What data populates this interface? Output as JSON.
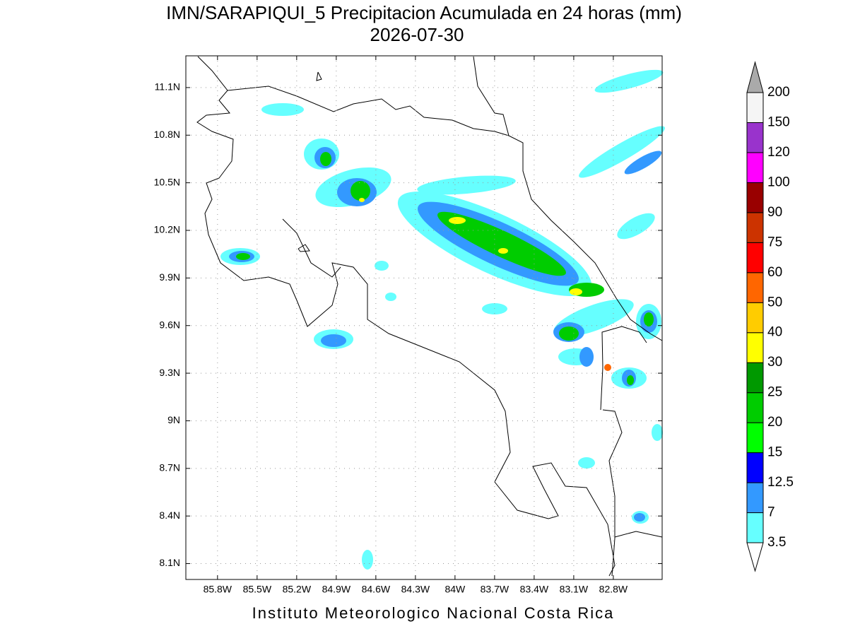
{
  "title": "IMN/SARAPIQUI_5 Precipitacion Acumulada en 24 horas (mm)",
  "date": "2026-07-30",
  "footer": "Instituto Meteorologico Nacional Costa Rica",
  "map": {
    "xlim": [
      -86.04,
      -82.43
    ],
    "ylim": [
      8.0,
      11.3
    ],
    "grid": true,
    "xticks": [
      {
        "value": -85.8,
        "label": "85.8W"
      },
      {
        "value": -85.5,
        "label": "85.5W"
      },
      {
        "value": -85.2,
        "label": "85.2W"
      },
      {
        "value": -84.9,
        "label": "84.9W"
      },
      {
        "value": -84.6,
        "label": "84.6W"
      },
      {
        "value": -84.3,
        "label": "84.3W"
      },
      {
        "value": -84.0,
        "label": "84W"
      },
      {
        "value": -83.7,
        "label": "83.7W"
      },
      {
        "value": -83.4,
        "label": "83.4W"
      },
      {
        "value": -83.1,
        "label": "83.1W"
      },
      {
        "value": -82.8,
        "label": "82.8W"
      }
    ],
    "yticks": [
      {
        "value": 11.1,
        "label": "11.1N"
      },
      {
        "value": 10.8,
        "label": "10.8N"
      },
      {
        "value": 10.5,
        "label": "10.5N"
      },
      {
        "value": 10.2,
        "label": "10.2N"
      },
      {
        "value": 9.9,
        "label": "9.9N"
      },
      {
        "value": 9.6,
        "label": "9.6N"
      },
      {
        "value": 9.3,
        "label": "9.3N"
      },
      {
        "value": 9.0,
        "label": "9N"
      },
      {
        "value": 8.7,
        "label": "8.7N"
      },
      {
        "value": 8.4,
        "label": "8.4N"
      },
      {
        "value": 8.1,
        "label": "8.1N"
      }
    ]
  },
  "colorbar": {
    "levels": [
      3.5,
      7,
      12.5,
      15,
      20,
      25,
      30,
      40,
      50,
      60,
      75,
      90,
      100,
      120,
      150,
      200
    ],
    "colors": [
      "#66ffff",
      "#3399ff",
      "#0000ff",
      "#00ff00",
      "#00cc00",
      "#009900",
      "#ffff00",
      "#ffcc00",
      "#ff6600",
      "#ff0000",
      "#cc3300",
      "#990000",
      "#ff00ff",
      "#9933cc",
      "#f5f5f5"
    ],
    "under_color": "#ffffff",
    "over_color": "#aaaaaa"
  }
}
